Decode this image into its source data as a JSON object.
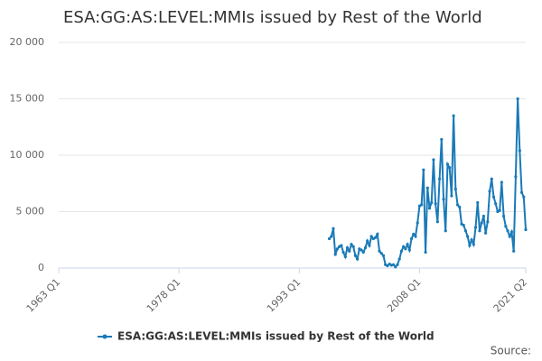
{
  "chart_data": {
    "type": "line",
    "title": "ESA:GG:AS:LEVEL:MMIs issued by Rest of the World",
    "source": "Source:",
    "xlim": [
      1963,
      2021.25
    ],
    "xticks": [
      {
        "value": 1963,
        "label": "1963 Q1"
      },
      {
        "value": 1978,
        "label": "1978 Q1"
      },
      {
        "value": 1993,
        "label": "1993 Q1"
      },
      {
        "value": 2008,
        "label": "2008 Q1"
      },
      {
        "value": 2021.25,
        "label": "2021 Q2"
      }
    ],
    "ylim": [
      0,
      20000
    ],
    "yticks": [
      0,
      {
        "value": 5000,
        "label": "5 000"
      },
      {
        "value": 10000,
        "label": "10 000"
      },
      {
        "value": 15000,
        "label": "15 000"
      },
      {
        "value": 20000,
        "label": "20 000"
      }
    ],
    "grid": true,
    "legend": "bottom",
    "x": [
      1996.75,
      1997,
      1997.25,
      1997.5,
      1997.75,
      1998,
      1998.25,
      1998.5,
      1998.75,
      1999,
      1999.25,
      1999.5,
      1999.75,
      2000,
      2000.25,
      2000.5,
      2000.75,
      2001,
      2001.25,
      2001.5,
      2001.75,
      2002,
      2002.25,
      2002.5,
      2002.75,
      2003,
      2003.25,
      2003.5,
      2003.75,
      2004,
      2004.25,
      2004.5,
      2004.75,
      2005,
      2005.25,
      2005.5,
      2005.75,
      2006,
      2006.25,
      2006.5,
      2006.75,
      2007,
      2007.25,
      2007.5,
      2007.75,
      2008,
      2008.25,
      2008.5,
      2008.75,
      2009,
      2009.25,
      2009.5,
      2009.75,
      2010,
      2010.25,
      2010.5,
      2010.75,
      2011,
      2011.25,
      2011.5,
      2011.75,
      2012,
      2012.25,
      2012.5,
      2012.75,
      2013,
      2013.25,
      2013.5,
      2013.75,
      2014,
      2014.25,
      2014.5,
      2014.75,
      2015,
      2015.25,
      2015.5,
      2015.75,
      2016,
      2016.25,
      2016.5,
      2016.75,
      2017,
      2017.25,
      2017.5,
      2017.75,
      2018,
      2018.25,
      2018.5,
      2018.75,
      2019,
      2019.25,
      2019.5,
      2019.75,
      2020,
      2020.25,
      2020.5,
      2020.75,
      2021,
      2021.25
    ],
    "series": [
      {
        "name": "ESA:GG:AS:LEVEL:MMIs issued by Rest of the World",
        "color": "#1a7ab8",
        "values": [
          2600,
          2800,
          3500,
          1200,
          1700,
          1900,
          2000,
          1400,
          1000,
          1800,
          1500,
          2100,
          1900,
          1100,
          800,
          1700,
          1600,
          1400,
          1800,
          2400,
          2000,
          2800,
          2600,
          2700,
          3000,
          1500,
          1300,
          1100,
          300,
          200,
          350,
          250,
          300,
          100,
          300,
          800,
          1500,
          1900,
          1700,
          2100,
          1600,
          2600,
          3000,
          2800,
          4000,
          5500,
          5600,
          8700,
          1400,
          7100,
          5300,
          5800,
          9600,
          5700,
          4100,
          7900,
          11400,
          6100,
          3300,
          9200,
          8900,
          6400,
          13500,
          7000,
          5600,
          5400,
          3900,
          3800,
          3300,
          2800,
          2000,
          2500,
          2100,
          3600,
          5800,
          3300,
          4000,
          4600,
          3100,
          4100,
          6800,
          7900,
          6300,
          5700,
          5000,
          5100,
          7600,
          4600,
          3700,
          3300,
          2800,
          3200,
          1500,
          8100,
          15000,
          10400,
          6700,
          6300,
          3400
        ]
      }
    ]
  }
}
